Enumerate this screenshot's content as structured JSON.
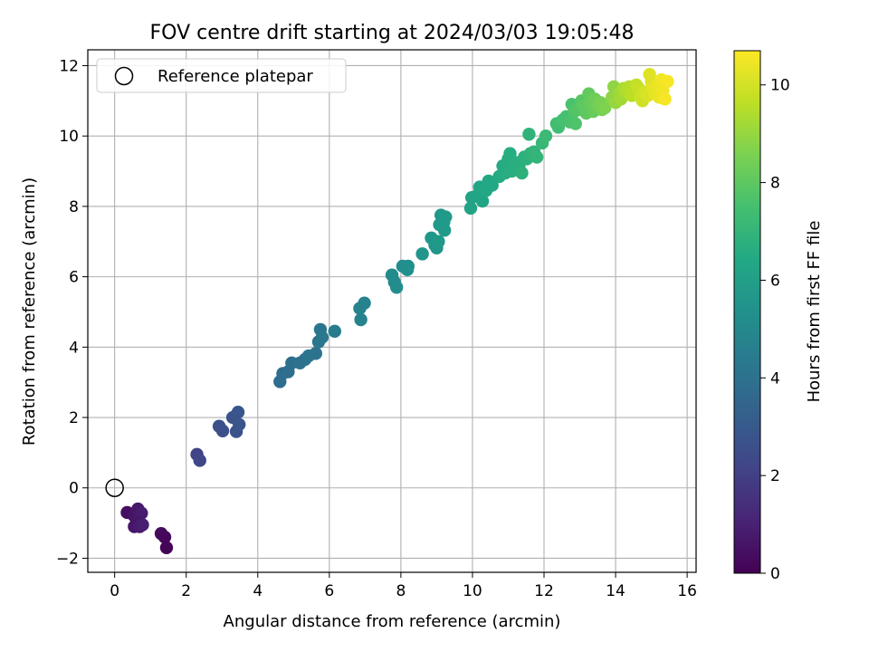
{
  "chart_data": {
    "type": "scatter",
    "title": "FOV centre drift starting at 2024/03/03 19:05:48",
    "xlabel": "Angular distance from reference (arcmin)",
    "ylabel": "Rotation from reference (arcmin)",
    "xlim": [
      -0.75,
      16.25
    ],
    "ylim": [
      -2.4,
      12.45
    ],
    "x_ticks": [
      0,
      2,
      4,
      6,
      8,
      10,
      12,
      14,
      16
    ],
    "y_ticks": [
      -2,
      0,
      2,
      4,
      6,
      8,
      10,
      12
    ],
    "grid": true,
    "legend": {
      "placement": "top-left",
      "entries": [
        "Reference platepar"
      ]
    },
    "reference_point": {
      "x": 0,
      "y": 0,
      "label": "Reference platepar"
    },
    "colorbar": {
      "label": "Hours from first FF file",
      "colormap": "viridis",
      "range": [
        0,
        10.7
      ],
      "ticks": [
        0,
        2,
        4,
        6,
        8,
        10
      ]
    },
    "points": [
      [
        0.35,
        -0.7,
        0.4
      ],
      [
        0.55,
        -0.8,
        0.6
      ],
      [
        0.65,
        -0.6,
        0.7
      ],
      [
        0.75,
        -0.72,
        0.8
      ],
      [
        0.62,
        -1.0,
        0.7
      ],
      [
        0.55,
        -1.1,
        0.6
      ],
      [
        0.7,
        -1.1,
        0.8
      ],
      [
        0.78,
        -1.05,
        0.9
      ],
      [
        1.3,
        -1.3,
        0.3
      ],
      [
        1.4,
        -1.4,
        0.2
      ],
      [
        1.45,
        -1.7,
        0.1
      ],
      [
        2.3,
        0.95,
        2.1
      ],
      [
        2.38,
        0.78,
        2.2
      ],
      [
        2.92,
        1.75,
        2.6
      ],
      [
        3.02,
        1.62,
        2.6
      ],
      [
        3.3,
        2.0,
        2.7
      ],
      [
        3.45,
        2.15,
        2.8
      ],
      [
        3.4,
        1.6,
        2.7
      ],
      [
        3.48,
        1.8,
        2.8
      ],
      [
        4.62,
        3.02,
        3.8
      ],
      [
        4.7,
        3.25,
        3.8
      ],
      [
        4.85,
        3.3,
        3.9
      ],
      [
        4.95,
        3.55,
        3.9
      ],
      [
        5.18,
        3.55,
        4.0
      ],
      [
        5.32,
        3.65,
        4.0
      ],
      [
        5.42,
        3.75,
        4.1
      ],
      [
        5.62,
        3.82,
        4.1
      ],
      [
        5.7,
        4.15,
        4.2
      ],
      [
        5.75,
        4.5,
        4.2
      ],
      [
        5.8,
        4.28,
        4.3
      ],
      [
        6.15,
        4.45,
        4.4
      ],
      [
        6.85,
        5.1,
        4.7
      ],
      [
        6.98,
        5.25,
        4.7
      ],
      [
        6.88,
        4.78,
        4.7
      ],
      [
        7.75,
        6.05,
        5.1
      ],
      [
        7.82,
        5.85,
        5.1
      ],
      [
        7.88,
        5.7,
        5.2
      ],
      [
        8.05,
        6.3,
        5.2
      ],
      [
        8.2,
        6.3,
        5.3
      ],
      [
        8.18,
        6.2,
        5.3
      ],
      [
        8.6,
        6.65,
        5.5
      ],
      [
        8.85,
        7.1,
        5.6
      ],
      [
        8.95,
        6.9,
        5.6
      ],
      [
        9.0,
        6.82,
        5.6
      ],
      [
        9.05,
        7.0,
        5.7
      ],
      [
        9.08,
        7.48,
        5.7
      ],
      [
        9.12,
        7.75,
        5.7
      ],
      [
        9.2,
        7.55,
        5.8
      ],
      [
        9.22,
        7.32,
        5.8
      ],
      [
        9.25,
        7.7,
        5.8
      ],
      [
        9.95,
        7.95,
        6.2
      ],
      [
        9.98,
        8.25,
        6.2
      ],
      [
        10.15,
        8.32,
        6.3
      ],
      [
        10.2,
        8.55,
        6.3
      ],
      [
        10.28,
        8.15,
        6.3
      ],
      [
        10.38,
        8.45,
        6.4
      ],
      [
        10.45,
        8.72,
        6.4
      ],
      [
        10.55,
        8.6,
        6.4
      ],
      [
        10.75,
        8.85,
        6.5
      ],
      [
        10.85,
        9.15,
        6.5
      ],
      [
        10.92,
        8.95,
        6.6
      ],
      [
        11.0,
        9.35,
        6.6
      ],
      [
        11.05,
        9.5,
        6.6
      ],
      [
        11.1,
        9.0,
        6.7
      ],
      [
        11.2,
        9.25,
        6.7
      ],
      [
        11.3,
        9.15,
        6.7
      ],
      [
        11.38,
        8.95,
        6.8
      ],
      [
        11.45,
        9.4,
        6.8
      ],
      [
        11.52,
        9.35,
        6.8
      ],
      [
        11.58,
        10.05,
        6.9
      ],
      [
        11.62,
        9.5,
        6.9
      ],
      [
        11.72,
        9.55,
        7.0
      ],
      [
        11.8,
        9.4,
        7.0
      ],
      [
        11.95,
        9.8,
        7.1
      ],
      [
        12.05,
        10.0,
        7.2
      ],
      [
        12.35,
        10.35,
        7.4
      ],
      [
        12.4,
        10.25,
        7.4
      ],
      [
        12.52,
        10.45,
        7.5
      ],
      [
        12.62,
        10.55,
        7.5
      ],
      [
        12.72,
        10.4,
        7.6
      ],
      [
        12.78,
        10.9,
        7.6
      ],
      [
        12.85,
        10.7,
        7.7
      ],
      [
        12.88,
        10.35,
        7.7
      ],
      [
        12.95,
        10.75,
        7.8
      ],
      [
        13.05,
        11.0,
        7.9
      ],
      [
        13.1,
        10.85,
        8.0
      ],
      [
        13.18,
        10.65,
        8.0
      ],
      [
        13.25,
        11.2,
        8.1
      ],
      [
        13.3,
        10.95,
        8.2
      ],
      [
        13.38,
        10.7,
        8.2
      ],
      [
        13.42,
        11.05,
        8.3
      ],
      [
        13.5,
        10.85,
        8.4
      ],
      [
        13.58,
        10.95,
        8.5
      ],
      [
        13.62,
        10.75,
        8.5
      ],
      [
        13.7,
        10.8,
        8.6
      ],
      [
        13.9,
        11.1,
        8.9
      ],
      [
        13.95,
        11.4,
        8.9
      ],
      [
        14.0,
        10.95,
        9.0
      ],
      [
        14.1,
        11.2,
        9.1
      ],
      [
        14.15,
        11.05,
        9.2
      ],
      [
        14.22,
        11.35,
        9.3
      ],
      [
        14.3,
        11.25,
        9.4
      ],
      [
        14.38,
        11.4,
        9.5
      ],
      [
        14.45,
        11.15,
        9.6
      ],
      [
        14.52,
        11.3,
        9.6
      ],
      [
        14.58,
        11.45,
        9.7
      ],
      [
        14.65,
        11.35,
        9.8
      ],
      [
        14.7,
        11.1,
        9.9
      ],
      [
        14.75,
        11.0,
        9.9
      ],
      [
        14.82,
        11.25,
        10.0
      ],
      [
        14.9,
        11.15,
        10.1
      ],
      [
        14.95,
        11.75,
        10.2
      ],
      [
        15.0,
        11.55,
        10.2
      ],
      [
        15.05,
        11.35,
        10.3
      ],
      [
        15.1,
        11.2,
        10.3
      ],
      [
        15.18,
        11.45,
        10.4
      ],
      [
        15.22,
        11.1,
        10.4
      ],
      [
        15.28,
        11.6,
        10.5
      ],
      [
        15.32,
        11.3,
        10.5
      ],
      [
        15.38,
        11.05,
        10.6
      ],
      [
        15.45,
        11.55,
        10.6
      ]
    ]
  }
}
